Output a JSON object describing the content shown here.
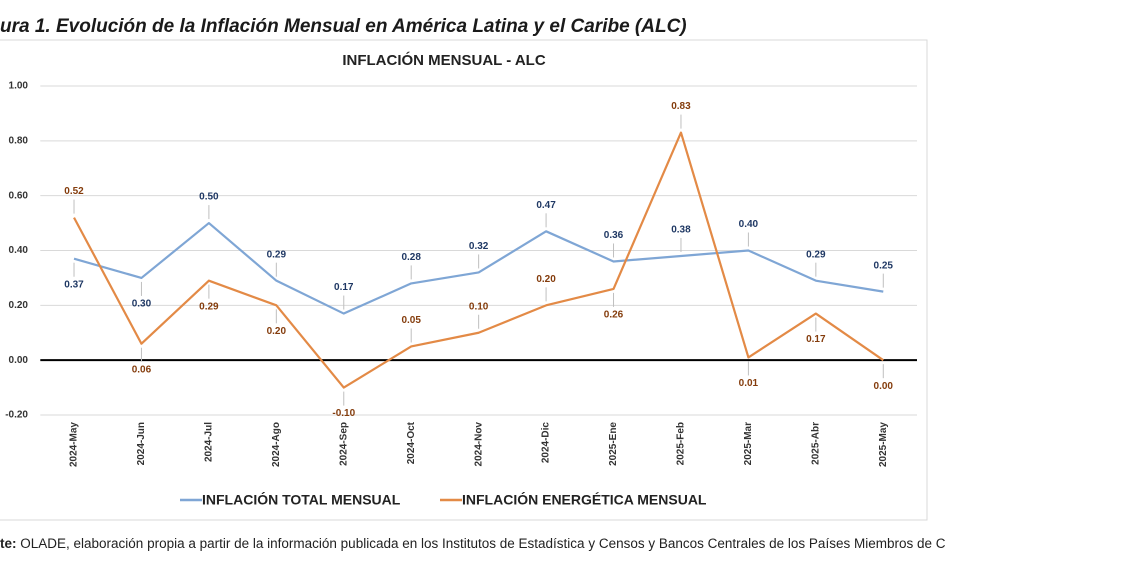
{
  "chart_data": {
    "type": "line",
    "caption": "ura 1. Evolución de la Inflación Mensual en América Latina y el Caribe (ALC)",
    "title": "INFLACIÓN MENSUAL - ALC",
    "categories": [
      "2024-May",
      "2024-Jun",
      "2024-Jul",
      "2024-Ago",
      "2024-Sep",
      "2024-Oct",
      "2024-Nov",
      "2024-Dic",
      "2025-Ene",
      "2025-Feb",
      "2025-Mar",
      "2025-Abr",
      "2025-May"
    ],
    "series": [
      {
        "name": "INFLACIÓN TOTAL MENSUAL",
        "color": "#7fa6d5",
        "label_color": "#1f3864",
        "values": [
          0.37,
          0.3,
          0.5,
          0.29,
          0.17,
          0.28,
          0.32,
          0.47,
          0.36,
          0.38,
          0.4,
          0.29,
          0.25
        ],
        "value_labels": [
          "0.37",
          "0.30",
          "0.50",
          "0.29",
          "0.17",
          "0.28",
          "0.32",
          "0.47",
          "0.36",
          "0.38",
          "0.40",
          "0.29",
          "0.25"
        ]
      },
      {
        "name": "INFLACIÓN ENERGÉTICA MENSUAL",
        "color": "#e38a46",
        "label_color": "#843c0c",
        "values": [
          0.52,
          0.06,
          0.29,
          0.2,
          -0.1,
          0.05,
          0.1,
          0.2,
          0.26,
          0.83,
          0.01,
          0.17,
          0
        ],
        "value_labels": [
          "0.52",
          "0.06",
          "0.29",
          "0.20",
          "-0.10",
          "0.05",
          "0.10",
          "0.20",
          "0.26",
          "0.83",
          "0.01",
          "0.17",
          "0.00"
        ]
      }
    ],
    "ylim": [
      -0.2,
      1
    ],
    "yticks": [
      {
        "value": -0.2,
        "label": "-0.20"
      },
      {
        "value": 0,
        "label": "0.00"
      },
      {
        "value": 0.2,
        "label": "0.20"
      },
      {
        "value": 0.4,
        "label": "0.40"
      },
      {
        "value": 0.6,
        "label": "0.60"
      },
      {
        "value": 0.8,
        "label": "0.80"
      },
      {
        "value": 1,
        "label": "1.00"
      }
    ],
    "grid": true,
    "legend": "bottom",
    "source_label": "te:",
    "source_text": " OLADE, elaboración propia a partir de la información publicada en los Institutos de Estadística y Censos y Bancos Centrales de los Países Miembros de C"
  }
}
